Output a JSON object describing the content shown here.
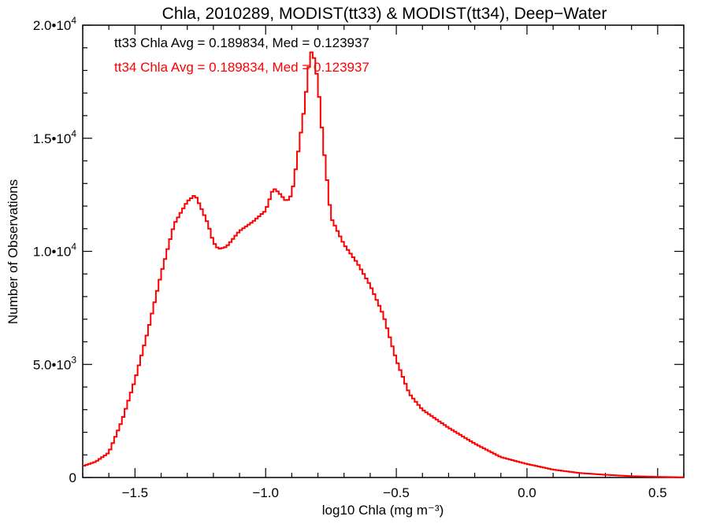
{
  "chart_data": {
    "type": "histogram",
    "title": "Chla, 2010289, MODIST(tt33) & MODIST(tt34), Deep−Water",
    "xlabel": "log10 Chla (mg m⁻³)",
    "ylabel": "Number of Observations",
    "xlim": [
      -1.7,
      0.6
    ],
    "ylim": [
      0,
      20000
    ],
    "x_ticks": [
      {
        "value": -1.5,
        "label": "−1.5"
      },
      {
        "value": -1.0,
        "label": "−1.0"
      },
      {
        "value": -0.5,
        "label": "−0.5"
      },
      {
        "value": 0.0,
        "label": "0.0"
      },
      {
        "value": 0.5,
        "label": "0.5"
      }
    ],
    "y_ticks": [
      {
        "value": 0,
        "label": "0",
        "exp": ""
      },
      {
        "value": 5000,
        "label": "5.0•10",
        "exp": "3"
      },
      {
        "value": 10000,
        "label": "1.0•10",
        "exp": "4"
      },
      {
        "value": 15000,
        "label": "1.5•10",
        "exp": "4"
      },
      {
        "value": 20000,
        "label": "2.0•10",
        "exp": "4"
      }
    ],
    "annotations": [
      {
        "text": "tt33 Chla Avg = 0.189834, Med = 0.123937",
        "color": "#000000"
      },
      {
        "text": "tt34 Chla Avg = 0.189834, Med = 0.123937",
        "color": "#ff0000"
      }
    ],
    "series": [
      {
        "color": "#ff0000",
        "x": [
          -1.7,
          -1.65,
          -1.6,
          -1.55,
          -1.5,
          -1.45,
          -1.4,
          -1.35,
          -1.3,
          -1.27,
          -1.25,
          -1.22,
          -1.2,
          -1.18,
          -1.15,
          -1.1,
          -1.05,
          -1.0,
          -0.97,
          -0.95,
          -0.92,
          -0.9,
          -0.88,
          -0.85,
          -0.83,
          -0.82,
          -0.8,
          -0.78,
          -0.75,
          -0.7,
          -0.65,
          -0.6,
          -0.55,
          -0.5,
          -0.45,
          -0.4,
          -0.35,
          -0.3,
          -0.2,
          -0.1,
          0.0,
          0.1,
          0.2,
          0.3,
          0.4,
          0.5,
          0.6
        ],
        "y": [
          500,
          700,
          1100,
          2500,
          4300,
          6500,
          9000,
          11200,
          12200,
          12500,
          12000,
          11200,
          10400,
          10100,
          10200,
          10900,
          11300,
          11800,
          12800,
          12600,
          12200,
          12500,
          14000,
          16500,
          18700,
          18900,
          17500,
          14800,
          11500,
          10300,
          9500,
          8500,
          7200,
          5200,
          3700,
          3000,
          2600,
          2200,
          1500,
          900,
          600,
          350,
          200,
          120,
          60,
          30,
          10
        ]
      }
    ]
  }
}
